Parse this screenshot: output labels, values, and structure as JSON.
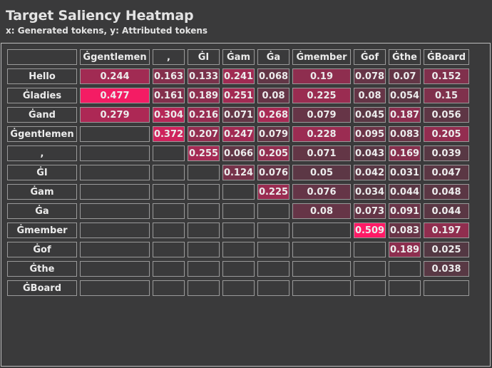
{
  "title": "Target Saliency Heatmap",
  "subtitle": "x: Generated tokens, y: Attributed tokens",
  "colors": {
    "background": "#3a3a3b",
    "low": "#4a3a41",
    "high": "#ff1a66"
  },
  "chart_data": {
    "type": "heatmap",
    "title": "Target Saliency Heatmap",
    "subtitle": "x: Generated tokens, y: Attributed tokens",
    "x_tokens": [
      "Ġgentlemen",
      ",",
      "ĠI",
      "Ġam",
      "Ġa",
      "Ġmember",
      "Ġof",
      "Ġthe",
      "ĠBoard"
    ],
    "y_tokens": [
      "Hello",
      "Ġladies",
      "Ġand",
      "Ġgentlemen",
      ",",
      "ĠI",
      "Ġam",
      "Ġa",
      "Ġmember",
      "Ġof",
      "Ġthe",
      "ĠBoard"
    ],
    "values": [
      [
        0.244,
        0.163,
        0.133,
        0.241,
        0.068,
        0.19,
        0.078,
        0.07,
        0.152
      ],
      [
        0.477,
        0.161,
        0.189,
        0.251,
        0.08,
        0.225,
        0.08,
        0.054,
        0.15
      ],
      [
        0.279,
        0.304,
        0.216,
        0.071,
        0.268,
        0.079,
        0.045,
        0.187,
        0.056
      ],
      [
        null,
        0.372,
        0.207,
        0.247,
        0.079,
        0.228,
        0.095,
        0.083,
        0.205
      ],
      [
        null,
        null,
        0.255,
        0.066,
        0.205,
        0.071,
        0.043,
        0.169,
        0.039
      ],
      [
        null,
        null,
        null,
        0.124,
        0.076,
        0.05,
        0.042,
        0.031,
        0.047
      ],
      [
        null,
        null,
        null,
        null,
        0.225,
        0.076,
        0.034,
        0.044,
        0.048
      ],
      [
        null,
        null,
        null,
        null,
        null,
        0.08,
        0.073,
        0.091,
        0.044
      ],
      [
        null,
        null,
        null,
        null,
        null,
        null,
        0.509,
        0.083,
        0.197
      ],
      [
        null,
        null,
        null,
        null,
        null,
        null,
        null,
        0.189,
        0.025
      ],
      [
        null,
        null,
        null,
        null,
        null,
        null,
        null,
        null,
        0.038
      ],
      [
        null,
        null,
        null,
        null,
        null,
        null,
        null,
        null,
        null
      ]
    ]
  }
}
